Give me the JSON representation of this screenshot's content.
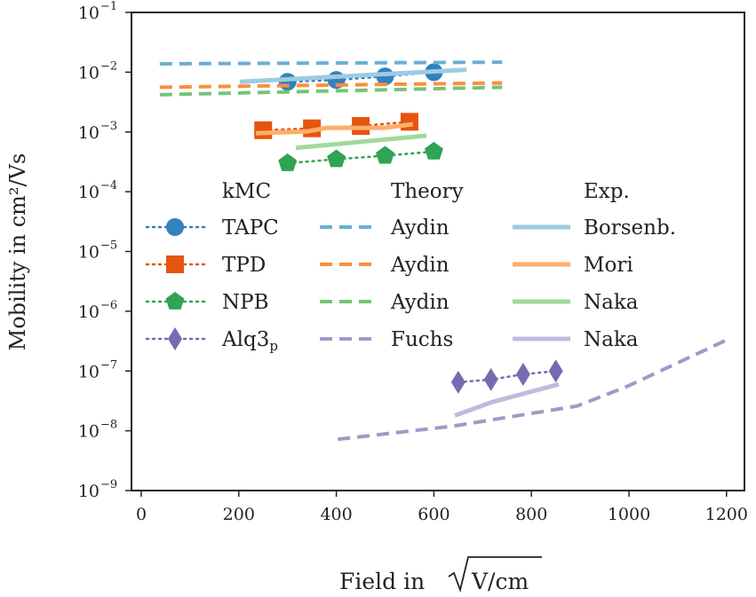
{
  "chart_data": {
    "type": "line",
    "xlabel": "Field in",
    "xlabel_sqrt": "V/cm",
    "ylabel": "Mobility in cm²/Vs",
    "xlim": [
      -20,
      1250
    ],
    "ylim_log10": [
      -9,
      -1
    ],
    "xticks": [
      0,
      200,
      400,
      600,
      800,
      1000,
      1200
    ],
    "yticks": [
      {
        "base": "10",
        "exp": "−9"
      },
      {
        "base": "10",
        "exp": "−8"
      },
      {
        "base": "10",
        "exp": "−7"
      },
      {
        "base": "10",
        "exp": "−6"
      },
      {
        "base": "10",
        "exp": "−5"
      },
      {
        "base": "10",
        "exp": "−4"
      },
      {
        "base": "10",
        "exp": "−3"
      },
      {
        "base": "10",
        "exp": "−2"
      },
      {
        "base": "10",
        "exp": "−1"
      }
    ],
    "legend_placement": "center-left",
    "legend_headers": [
      "kMC",
      "Theory",
      "Exp."
    ],
    "series": [
      {
        "name": "TAPC",
        "group": "kMC",
        "style": "dotted",
        "marker": "circle",
        "color": "#3182bd",
        "x": [
          300,
          400,
          500,
          600
        ],
        "y": [
          0.0069,
          0.0074,
          0.0085,
          0.01
        ]
      },
      {
        "name": "TPD",
        "group": "kMC",
        "style": "dotted",
        "marker": "square",
        "color": "#e6550d",
        "x": [
          250,
          350,
          450,
          550
        ],
        "y": [
          0.00107,
          0.00115,
          0.00126,
          0.00148
        ]
      },
      {
        "name": "NPB",
        "group": "kMC",
        "style": "dotted",
        "marker": "pentagon",
        "color": "#31a354",
        "x": [
          300,
          400,
          500,
          600
        ],
        "y": [
          0.0003,
          0.00035,
          0.0004,
          0.00047
        ]
      },
      {
        "name": "Alq3",
        "sub": "p",
        "group": "kMC",
        "style": "dotted",
        "marker": "diamond",
        "color": "#756bb1",
        "x": [
          650,
          717,
          783,
          850
        ],
        "y": [
          6.5e-08,
          7.2e-08,
          8.8e-08,
          1e-07
        ]
      },
      {
        "name": "Aydin",
        "group": "Theory",
        "style": "dashed",
        "color": "#6baed6",
        "x": [
          38,
          740
        ],
        "y": [
          0.0138,
          0.0147
        ]
      },
      {
        "name": "Aydin",
        "group": "Theory",
        "style": "dashed",
        "color": "#fd8d3c",
        "x": [
          38,
          740
        ],
        "y": [
          0.0056,
          0.0066
        ]
      },
      {
        "name": "Aydin",
        "group": "Theory",
        "style": "dashed",
        "color": "#74c476",
        "x": [
          38,
          740
        ],
        "y": [
          0.0042,
          0.0056
        ]
      },
      {
        "name": "Fuchs",
        "group": "Theory",
        "style": "dashed",
        "color": "#9e9ac8",
        "x": [
          403,
          640,
          894,
          998,
          1200
        ],
        "y": [
          7.2e-09,
          1.2e-08,
          2.6e-08,
          5.6e-08,
          3.3e-07
        ]
      },
      {
        "name": "Borsenb.",
        "group": "Exp.",
        "style": "solid",
        "color": "#9ecae1",
        "x": [
          202,
          667
        ],
        "y": [
          0.0069,
          0.011
        ]
      },
      {
        "name": "Mori",
        "group": "Exp.",
        "style": "solid",
        "color": "#fdae6b",
        "x": [
          235,
          340,
          381,
          499,
          557
        ],
        "y": [
          0.00095,
          0.00102,
          0.00117,
          0.00117,
          0.00135
        ]
      },
      {
        "name": "Naka",
        "group": "Exp.",
        "style": "solid",
        "color": "#a1d99b",
        "x": [
          317,
          585
        ],
        "y": [
          0.00054,
          0.00087
        ]
      },
      {
        "name": "Naka",
        "group": "Exp.",
        "style": "solid",
        "color": "#bcbddc",
        "x": [
          643,
          718,
          856
        ],
        "y": [
          1.8e-08,
          3e-08,
          6e-08
        ]
      }
    ]
  }
}
